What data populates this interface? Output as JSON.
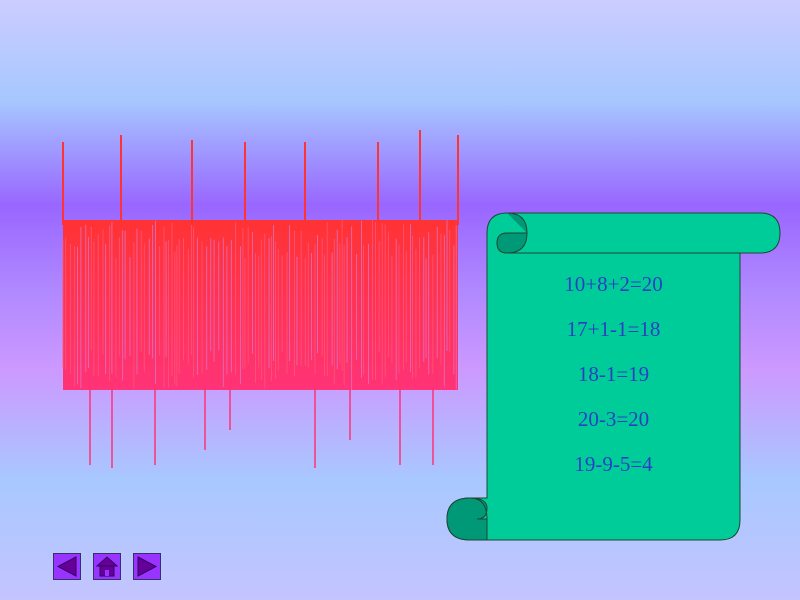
{
  "scroll": {
    "equations": [
      "10+8+2=20",
      "17+1-1=18",
      "18-1=19",
      "20-3=20",
      "19-9-5=4"
    ],
    "fill": "#00cc99",
    "roll_fill": "#009977"
  },
  "title_art": {
    "colors": [
      "#ff3333",
      "#ff3377"
    ]
  },
  "nav": {
    "prev": {
      "icon": "triangle-left-icon"
    },
    "home": {
      "icon": "house-icon"
    },
    "next": {
      "icon": "triangle-right-icon"
    },
    "button_color": "#9933ff"
  }
}
